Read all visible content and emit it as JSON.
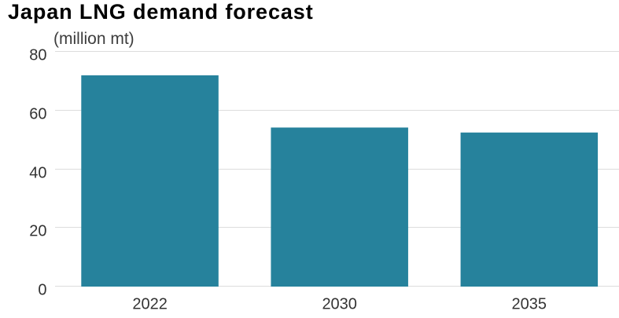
{
  "chart_data": {
    "type": "bar",
    "title": "Japan LNG demand forecast",
    "unit": "(million mt)",
    "categories": [
      "2022",
      "2030",
      "2035"
    ],
    "values": [
      72,
      54.2,
      52.5
    ],
    "ylim": [
      0,
      80
    ],
    "yticks": [
      0,
      20,
      40,
      60,
      80
    ],
    "xlabel": "",
    "ylabel": "",
    "grid": "horizontal",
    "legend": "none",
    "colors": {
      "bar": "#26829c",
      "gridline": "#dddddd",
      "axis_label": "#333333",
      "title": "#000000",
      "unit_label": "#3d3d3d",
      "background": "#ffffff"
    }
  }
}
